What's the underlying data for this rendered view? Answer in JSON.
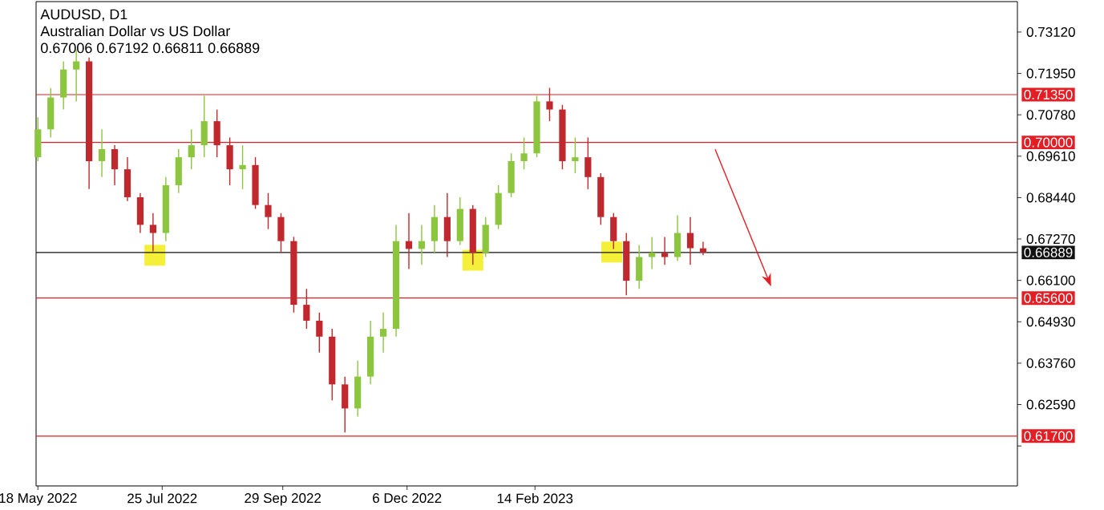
{
  "chart_data": {
    "type": "candlestick",
    "title": "AUDUSD, D1",
    "subtitle": "Australian Dollar vs US Dollar",
    "annotations": [
      "0.67006 0.67192 0.66811 0.66889"
    ],
    "x": [
      "2022-05-18",
      "2022-05-25",
      "2022-06-01",
      "2022-06-08",
      "2022-06-15",
      "2022-06-22",
      "2022-06-29",
      "2022-07-06",
      "2022-07-13",
      "2022-07-20",
      "2022-07-27",
      "2022-08-03",
      "2022-08-10",
      "2022-08-17",
      "2022-08-24",
      "2022-08-31",
      "2022-09-07",
      "2022-09-14",
      "2022-09-21",
      "2022-09-28",
      "2022-10-05",
      "2022-10-12",
      "2022-10-19",
      "2022-10-26",
      "2022-11-02",
      "2022-11-09",
      "2022-11-16",
      "2022-11-23",
      "2022-11-30",
      "2022-12-07",
      "2022-12-14",
      "2022-12-21",
      "2022-12-28",
      "2023-01-04",
      "2023-01-11",
      "2023-01-18",
      "2023-01-25",
      "2023-02-01",
      "2023-02-08",
      "2023-02-15",
      "2023-02-22",
      "2023-03-01",
      "2023-03-08",
      "2023-03-15",
      "2023-03-22",
      "2023-03-29",
      "2023-04-05",
      "2023-04-12",
      "2023-04-19",
      "2023-04-26",
      "2023-05-03",
      "2023-05-10",
      "2023-05-17"
    ],
    "ohlc": [
      [
        0.6958,
        0.7071,
        0.6947,
        0.7037
      ],
      [
        0.7037,
        0.7154,
        0.7014,
        0.7127
      ],
      [
        0.7127,
        0.7229,
        0.7093,
        0.7206
      ],
      [
        0.7206,
        0.7262,
        0.7116,
        0.7229
      ],
      [
        0.7229,
        0.724,
        0.6868,
        0.6947
      ],
      [
        0.6947,
        0.7037,
        0.6902,
        0.6981
      ],
      [
        0.6981,
        0.6992,
        0.6879,
        0.6924
      ],
      [
        0.6924,
        0.6958,
        0.6834,
        0.6845
      ],
      [
        0.6845,
        0.6857,
        0.6744,
        0.6767
      ],
      [
        0.6767,
        0.68,
        0.6692,
        0.6744
      ],
      [
        0.6744,
        0.6902,
        0.6721,
        0.6879
      ],
      [
        0.6879,
        0.6981,
        0.6857,
        0.6958
      ],
      [
        0.6958,
        0.7037,
        0.6924,
        0.6992
      ],
      [
        0.6992,
        0.7132,
        0.6958,
        0.706
      ],
      [
        0.706,
        0.7093,
        0.6958,
        0.6992
      ],
      [
        0.6992,
        0.7014,
        0.6879,
        0.6924
      ],
      [
        0.6924,
        0.6992,
        0.6868,
        0.6936
      ],
      [
        0.6936,
        0.6958,
        0.6812,
        0.6823
      ],
      [
        0.6823,
        0.6857,
        0.6755,
        0.6789
      ],
      [
        0.6789,
        0.68,
        0.6688,
        0.6721
      ],
      [
        0.6721,
        0.6733,
        0.6519,
        0.6541
      ],
      [
        0.6541,
        0.6586,
        0.6473,
        0.6496
      ],
      [
        0.6496,
        0.6519,
        0.6406,
        0.6451
      ],
      [
        0.6451,
        0.6473,
        0.6271,
        0.6316
      ],
      [
        0.6316,
        0.6338,
        0.618,
        0.6248
      ],
      [
        0.6248,
        0.6383,
        0.6225,
        0.6338
      ],
      [
        0.6338,
        0.6496,
        0.6316,
        0.6451
      ],
      [
        0.6451,
        0.6519,
        0.6406,
        0.6473
      ],
      [
        0.6473,
        0.6767,
        0.6451,
        0.6721
      ],
      [
        0.6721,
        0.68,
        0.6642,
        0.6699
      ],
      [
        0.6699,
        0.6767,
        0.6654,
        0.6721
      ],
      [
        0.6721,
        0.6823,
        0.6688,
        0.6789
      ],
      [
        0.6789,
        0.6857,
        0.6676,
        0.6721
      ],
      [
        0.6721,
        0.6845,
        0.671,
        0.6812
      ],
      [
        0.6812,
        0.6823,
        0.6654,
        0.6688
      ],
      [
        0.6688,
        0.6789,
        0.6676,
        0.6767
      ],
      [
        0.6767,
        0.6879,
        0.6755,
        0.6857
      ],
      [
        0.6857,
        0.6969,
        0.6845,
        0.6947
      ],
      [
        0.6947,
        0.7014,
        0.6924,
        0.6969
      ],
      [
        0.6969,
        0.7132,
        0.6958,
        0.7116
      ],
      [
        0.7116,
        0.7154,
        0.706,
        0.7093
      ],
      [
        0.7093,
        0.7106,
        0.6924,
        0.6947
      ],
      [
        0.6947,
        0.7014,
        0.6913,
        0.6958
      ],
      [
        0.6958,
        0.7014,
        0.6868,
        0.6902
      ],
      [
        0.6902,
        0.6913,
        0.6767,
        0.6789
      ],
      [
        0.6789,
        0.68,
        0.6699,
        0.6721
      ],
      [
        0.6721,
        0.6744,
        0.6568,
        0.6609
      ],
      [
        0.6609,
        0.671,
        0.6586,
        0.6676
      ],
      [
        0.6676,
        0.6733,
        0.6642,
        0.6688
      ],
      [
        0.6688,
        0.6733,
        0.6654,
        0.6676
      ],
      [
        0.6676,
        0.6794,
        0.6665,
        0.6744
      ],
      [
        0.6744,
        0.6789,
        0.6654,
        0.6701
      ],
      [
        0.67006,
        0.67192,
        0.66811,
        0.66889
      ]
    ],
    "colors": [
      "#8cc63f",
      "#8cc63f",
      "#8cc63f",
      "#8cc63f",
      "#c0282d",
      "#8cc63f",
      "#c0282d",
      "#c0282d",
      "#c0282d",
      "#c0282d",
      "#8cc63f",
      "#8cc63f",
      "#8cc63f",
      "#8cc63f",
      "#c0282d",
      "#c0282d",
      "#8cc63f",
      "#c0282d",
      "#c0282d",
      "#c0282d",
      "#c0282d",
      "#c0282d",
      "#c0282d",
      "#c0282d",
      "#c0282d",
      "#8cc63f",
      "#8cc63f",
      "#8cc63f",
      "#8cc63f",
      "#c0282d",
      "#8cc63f",
      "#8cc63f",
      "#c0282d",
      "#8cc63f",
      "#c0282d",
      "#8cc63f",
      "#8cc63f",
      "#8cc63f",
      "#8cc63f",
      "#8cc63f",
      "#c0282d",
      "#c0282d",
      "#8cc63f",
      "#c0282d",
      "#c0282d",
      "#c0282d",
      "#c0282d",
      "#8cc63f",
      "#8cc63f",
      "#c0282d",
      "#8cc63f",
      "#c0282d",
      "#c0282d"
    ],
    "xlim": [
      "2022-05-17",
      "2023-11-05"
    ],
    "xticks": [
      {
        "value": "2022-05-18",
        "label": "18 May 2022"
      },
      {
        "value": "2022-07-25",
        "label": "25 Jul 2022"
      },
      {
        "value": "2022-09-29",
        "label": "29 Sep 2022"
      },
      {
        "value": "2022-12-06",
        "label": "6 Dec 2022"
      },
      {
        "value": "2023-02-14",
        "label": "14 Feb 2023"
      }
    ],
    "ylim": [
      0.6029,
      0.7398
    ],
    "yticks": [
      {
        "value": 0.7312,
        "label": "0.73120"
      },
      {
        "value": 0.7195,
        "label": "0.71950"
      },
      {
        "value": 0.7078,
        "label": "0.70780"
      },
      {
        "value": 0.6961,
        "label": "0.69610"
      },
      {
        "value": 0.6844,
        "label": "0.68440"
      },
      {
        "value": 0.6727,
        "label": "0.67270"
      },
      {
        "value": 0.661,
        "label": "0.66100"
      },
      {
        "value": 0.6493,
        "label": "0.64930"
      },
      {
        "value": 0.6376,
        "label": "0.63760"
      },
      {
        "value": 0.6259,
        "label": "0.62590"
      },
      {
        "value": 0.6142,
        "label": null
      }
    ],
    "marker": "square",
    "series": [
      {
        "type": "scatter",
        "color": "#f4f03a",
        "x": [
          "2022-07-21",
          "2023-01-11",
          "2023-03-28"
        ],
        "values": [
          0.6681,
          0.6667,
          0.669
        ]
      }
    ],
    "ref_lines": [
      {
        "axis": "y",
        "value": 0.7135,
        "label": "0.71350",
        "color": "#e31e24"
      },
      {
        "axis": "y",
        "value": 0.7,
        "label": "0.70000",
        "color": "#e31e24"
      },
      {
        "axis": "y",
        "value": 0.66889,
        "label": "0.66889",
        "color": "#111111"
      },
      {
        "axis": "y",
        "value": 0.656,
        "label": "0.65600",
        "color": "#e31e24"
      },
      {
        "axis": "y",
        "value": 0.617,
        "label": "0.61700",
        "color": "#e31e24"
      }
    ]
  }
}
